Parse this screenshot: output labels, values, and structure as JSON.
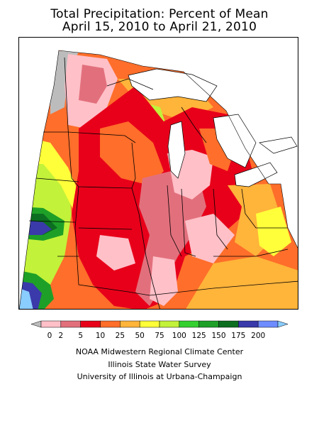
{
  "header": {
    "title_line1": "Total Precipitation: Percent of Mean",
    "title_line2": "April 15, 2010 to April 21, 2010"
  },
  "legend": {
    "labels": [
      "0",
      "2",
      "5",
      "10",
      "25",
      "50",
      "75",
      "100",
      "125",
      "150",
      "175",
      "200"
    ],
    "colors": [
      "#bcbcbc",
      "#ffc0c8",
      "#e2707c",
      "#e8001a",
      "#ff6e2a",
      "#ffb43a",
      "#ffff3a",
      "#c2f23a",
      "#34d030",
      "#1ea028",
      "#0c6e20",
      "#3a3aaa",
      "#6e8cff",
      "#8acdff"
    ]
  },
  "credits": {
    "line1": "NOAA Midwestern Regional Climate Center",
    "line2": "Illinois State Water Survey",
    "line3": "University of Illinois at Urbana-Champaign"
  }
}
